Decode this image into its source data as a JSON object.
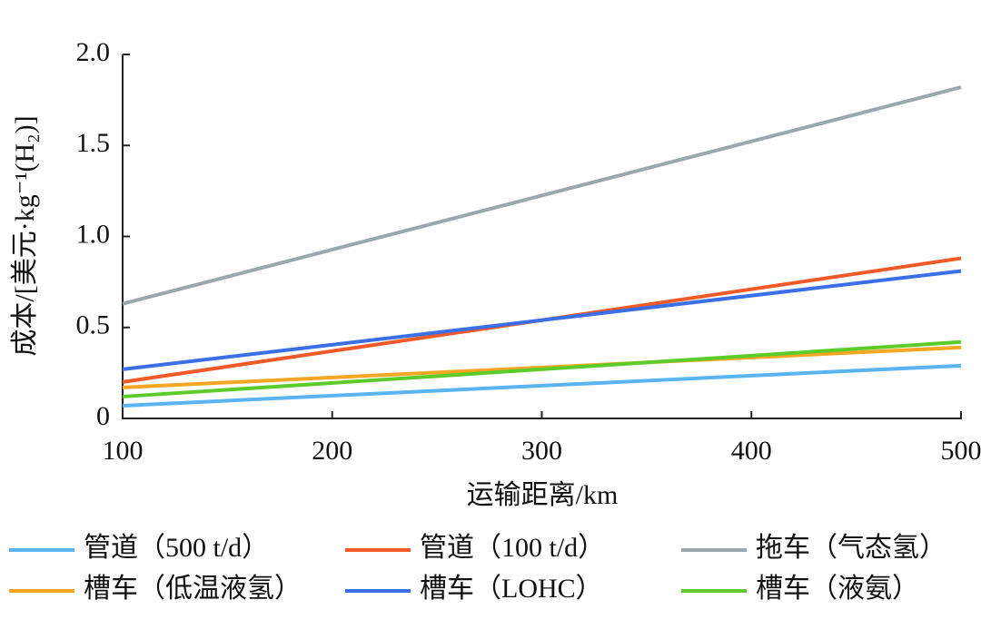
{
  "chart_data": {
    "type": "line",
    "x_label": "运输距离/km",
    "y_label": "成本/[美元·kg⁻¹(H₂)]",
    "x": [
      100,
      500
    ],
    "xlim": [
      100,
      500
    ],
    "xticks": [
      100,
      200,
      300,
      400,
      500
    ],
    "ylim": [
      0,
      2.0
    ],
    "yticks": [
      0,
      0.5,
      {
        "value": 1,
        "label": "1.0"
      },
      1.5,
      {
        "value": 2,
        "label": "2.0"
      }
    ],
    "grid": false,
    "series": [
      {
        "name": "管道（500 t/d）",
        "color": "#5ab4f0",
        "values": [
          0.07,
          0.29
        ]
      },
      {
        "name": "管道（100 t/d）",
        "color": "#f05a28",
        "values": [
          0.2,
          0.88
        ]
      },
      {
        "name": "拖车（气态氢）",
        "color": "#9aa8ad",
        "values": [
          0.63,
          1.82
        ]
      },
      {
        "name": "槽车（低温液氢）",
        "color": "#f5a623",
        "values": [
          0.17,
          0.39
        ]
      },
      {
        "name": "槽车（LOHC）",
        "color": "#3a6fe8",
        "values": [
          0.27,
          0.81
        ]
      },
      {
        "name": "槽车（液氨）",
        "color": "#5ccc2a",
        "values": [
          0.12,
          0.42
        ]
      }
    ]
  }
}
